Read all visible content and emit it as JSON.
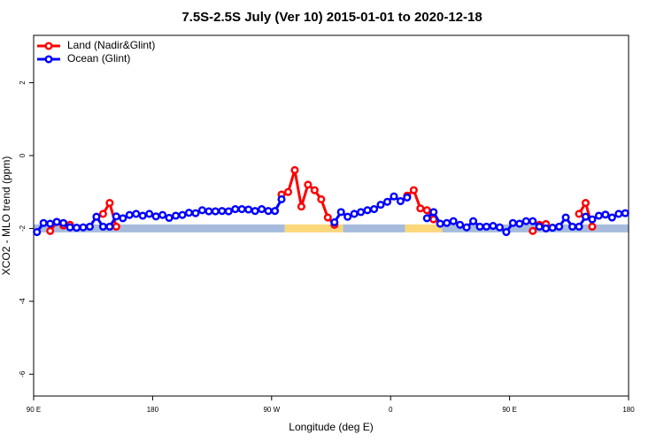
{
  "chart_data": {
    "type": "line",
    "title": "7.5S-2.5S July (Ver 10)   2015-01-01 to 2020-12-18",
    "x_label": "Longitude (deg E)",
    "y_label": "XCO2 - MLO trend (ppm)",
    "xlim": [
      90,
      540
    ],
    "ylim": [
      -6.6,
      3.3
    ],
    "xticks": [
      {
        "value": 90,
        "label": "90 E"
      },
      180,
      {
        "value": 270,
        "label": "90 W"
      },
      {
        "value": 360,
        "label": "0"
      },
      {
        "value": 450,
        "label": "90 E"
      },
      {
        "value": 540,
        "label": "180"
      }
    ],
    "yticks": [
      -6,
      -4,
      -2,
      0,
      2
    ],
    "legend": "top-left",
    "x": [
      92.5,
      97.5,
      102.5,
      107.5,
      112.5,
      117.5,
      122.5,
      127.5,
      132.5,
      137.5,
      142.5,
      147.5,
      152.5,
      157.5,
      162.5,
      167.5,
      172.5,
      177.5,
      182.5,
      187.5,
      192.5,
      197.5,
      202.5,
      207.5,
      212.5,
      217.5,
      222.5,
      227.5,
      232.5,
      237.5,
      242.5,
      247.5,
      252.5,
      257.5,
      262.5,
      267.5,
      272.5,
      277.5,
      282.5,
      287.5,
      292.5,
      297.5,
      302.5,
      307.5,
      312.5,
      317.5,
      322.5,
      327.5,
      332.5,
      337.5,
      342.5,
      347.5,
      352.5,
      357.5,
      362.5,
      367.5,
      372.5,
      377.5,
      382.5,
      387.5,
      392.5,
      397.5,
      402.5,
      407.5,
      412.5,
      417.5,
      422.5,
      427.5,
      432.5,
      437.5,
      442.5,
      447.5,
      452.5,
      457.5,
      462.5,
      467.5,
      472.5,
      477.5,
      482.5,
      487.5,
      492.5,
      497.5,
      502.5,
      507.5,
      512.5,
      517.5,
      522.5,
      527.5,
      532.5,
      537.5
    ],
    "series": [
      {
        "name": "Land (Nadir&Glint)",
        "color": "#ff0000",
        "values": [
          null,
          null,
          -2.07,
          -1.82,
          -1.92,
          -1.9,
          null,
          null,
          null,
          null,
          -1.6,
          -1.3,
          -1.95,
          null,
          null,
          null,
          null,
          null,
          null,
          null,
          null,
          null,
          null,
          null,
          null,
          null,
          null,
          null,
          null,
          null,
          null,
          null,
          null,
          null,
          null,
          null,
          null,
          -1.07,
          -1.0,
          -0.4,
          -1.4,
          -0.8,
          -0.95,
          -1.2,
          -1.7,
          -1.9,
          null,
          null,
          null,
          null,
          null,
          null,
          null,
          null,
          null,
          null,
          -1.1,
          -0.95,
          -1.45,
          -1.5,
          -1.75,
          null,
          null,
          null,
          null,
          null,
          null,
          null,
          null,
          null,
          null,
          null,
          null,
          null,
          null,
          -2.07,
          -1.9,
          -1.88,
          null,
          null,
          null,
          null,
          -1.6,
          -1.3,
          -1.95,
          null,
          null,
          null,
          null,
          null
        ]
      },
      {
        "name": "Ocean (Glint)",
        "color": "#0000ff",
        "values": [
          -2.1,
          -1.85,
          -1.87,
          -1.82,
          -1.85,
          -1.97,
          -1.98,
          -1.97,
          -1.95,
          -1.68,
          -1.95,
          -1.95,
          -1.67,
          -1.72,
          -1.63,
          -1.6,
          -1.65,
          -1.6,
          -1.67,
          -1.63,
          -1.71,
          -1.65,
          -1.63,
          -1.57,
          -1.58,
          -1.5,
          -1.53,
          -1.53,
          -1.52,
          -1.53,
          -1.47,
          -1.47,
          -1.48,
          -1.52,
          -1.47,
          -1.52,
          -1.52,
          -1.2,
          null,
          null,
          null,
          null,
          null,
          null,
          null,
          -1.83,
          -1.55,
          -1.68,
          -1.6,
          -1.55,
          -1.5,
          -1.47,
          -1.35,
          -1.27,
          -1.12,
          -1.25,
          -1.15,
          null,
          null,
          -1.72,
          -1.55,
          -1.87,
          -1.85,
          -1.8,
          -1.9,
          -1.97,
          -1.8,
          -1.95,
          -1.95,
          -1.93,
          -1.97,
          -2.1,
          -1.85,
          -1.87,
          -1.8,
          -1.8,
          -1.95,
          -2.0,
          -1.98,
          -1.95,
          -1.7,
          -1.95,
          -1.95,
          -1.68,
          -1.75,
          -1.65,
          -1.62,
          -1.7,
          -1.6,
          -1.58
        ]
      }
    ],
    "strip": {
      "y": -2,
      "segments": [
        {
          "xlim": [
            90,
            280
          ],
          "color": "#a7bcdc"
        },
        {
          "xlim": [
            280,
            324
          ],
          "color": "#fbd77a"
        },
        {
          "xlim": [
            324,
            371
          ],
          "color": "#a7bcdc"
        },
        {
          "xlim": [
            371,
            399
          ],
          "color": "#fbd77a"
        },
        {
          "xlim": [
            399,
            540
          ],
          "color": "#a7bcdc"
        }
      ]
    }
  }
}
